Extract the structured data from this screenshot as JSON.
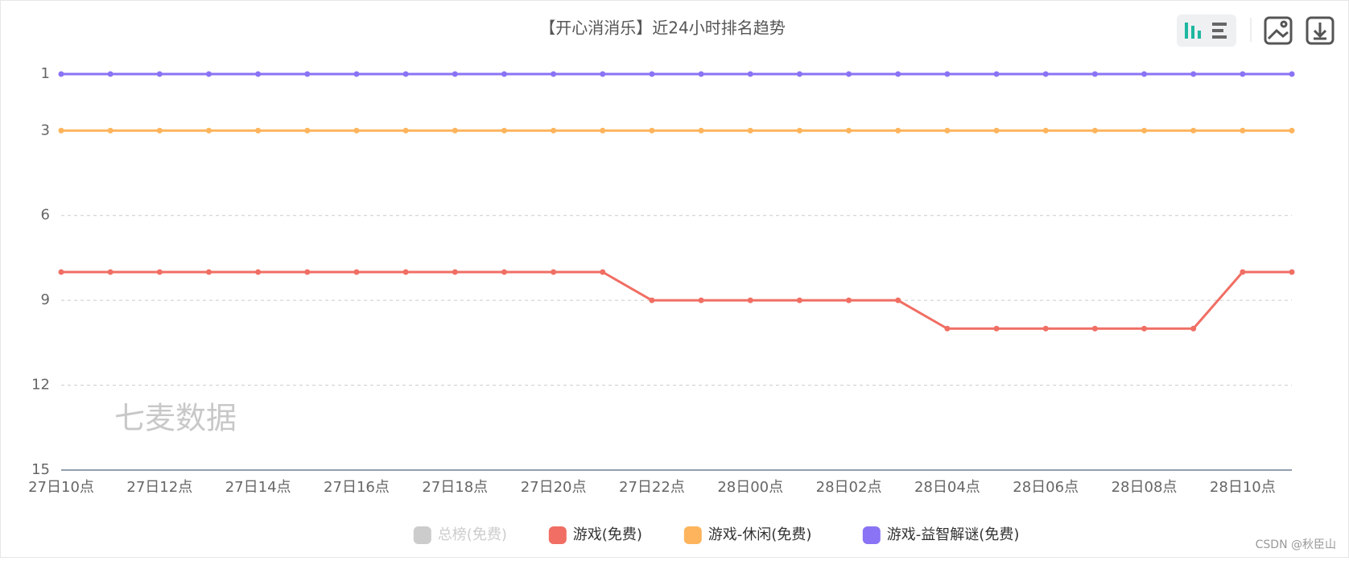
{
  "chart_data": {
    "type": "line",
    "title": "【开心消消乐】近24小时排名趋势",
    "watermark": "七麦数据",
    "credit": "CSDN @秋臣山",
    "categories": [
      "27日10点",
      null,
      "27日12点",
      null,
      "27日14点",
      null,
      "27日16点",
      null,
      "27日18点",
      null,
      "27日20点",
      null,
      "27日22点",
      null,
      "28日00点",
      null,
      "28日02点",
      null,
      "28日04点",
      null,
      "28日06点",
      null,
      "28日08点",
      null,
      "28日10点",
      null
    ],
    "ylim": [
      1,
      15
    ],
    "y_inverted": true,
    "yticks": [
      1,
      3,
      6,
      9,
      12,
      15
    ],
    "grid": true,
    "series": [
      {
        "name": "总榜(免费)",
        "color": "#cccccc",
        "hidden": true,
        "values": [
          null,
          null,
          null,
          null,
          null,
          null,
          null,
          null,
          null,
          null,
          null,
          null,
          null,
          null,
          null,
          null,
          null,
          null,
          null,
          null,
          null,
          null,
          null,
          null,
          null,
          null
        ]
      },
      {
        "name": "游戏(免费)",
        "color": "#f06e63",
        "values": [
          8,
          8,
          8,
          8,
          8,
          8,
          8,
          8,
          8,
          8,
          8,
          8,
          9,
          9,
          9,
          9,
          9,
          9,
          10,
          10,
          10,
          10,
          10,
          10,
          8,
          8
        ]
      },
      {
        "name": "游戏-休闲(免费)",
        "color": "#fdb45c",
        "values": [
          3,
          3,
          3,
          3,
          3,
          3,
          3,
          3,
          3,
          3,
          3,
          3,
          3,
          3,
          3,
          3,
          3,
          3,
          3,
          3,
          3,
          3,
          3,
          3,
          3,
          3
        ]
      },
      {
        "name": "游戏-益智解谜(免费)",
        "color": "#8a73f5",
        "values": [
          1,
          1,
          1,
          1,
          1,
          1,
          1,
          1,
          1,
          1,
          1,
          1,
          1,
          1,
          1,
          1,
          1,
          1,
          1,
          1,
          1,
          1,
          1,
          1,
          1,
          1
        ]
      }
    ]
  }
}
